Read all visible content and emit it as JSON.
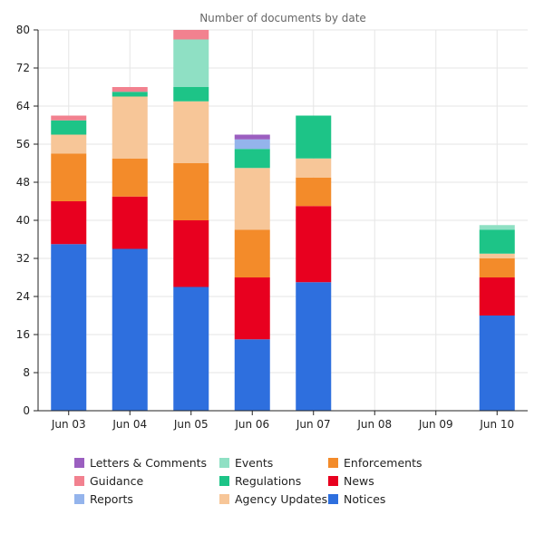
{
  "chart_data": {
    "type": "bar",
    "stacked": true,
    "title": "Number of documents by date",
    "xlabel": "",
    "ylabel": "",
    "ylim": [
      0,
      80
    ],
    "yticks": [
      0,
      8,
      16,
      24,
      32,
      40,
      48,
      56,
      64,
      72,
      80
    ],
    "grid": true,
    "legend_position": "bottom",
    "categories": [
      "Jun 03",
      "Jun 04",
      "Jun 05",
      "Jun 06",
      "Jun 07",
      "Jun 08",
      "Jun 09",
      "Jun 10"
    ],
    "series": [
      {
        "name": "Notices",
        "color": "#2e6fde",
        "values": [
          35,
          34,
          26,
          15,
          27,
          0,
          0,
          20
        ]
      },
      {
        "name": "News",
        "color": "#e8001f",
        "values": [
          9,
          11,
          14,
          13,
          16,
          0,
          0,
          8
        ]
      },
      {
        "name": "Enforcements",
        "color": "#f38b2a",
        "values": [
          10,
          8,
          12,
          10,
          6,
          0,
          0,
          4
        ]
      },
      {
        "name": "Agency Updates",
        "color": "#f7c698",
        "values": [
          4,
          13,
          13,
          13,
          4,
          0,
          0,
          1
        ]
      },
      {
        "name": "Regulations",
        "color": "#1dc487",
        "values": [
          3,
          1,
          3,
          4,
          9,
          0,
          0,
          5
        ]
      },
      {
        "name": "Events",
        "color": "#8fe0c4",
        "values": [
          0,
          0,
          10,
          0,
          0,
          0,
          0,
          1
        ]
      },
      {
        "name": "Reports",
        "color": "#94b4ec",
        "values": [
          0,
          0,
          0,
          2,
          0,
          0,
          0,
          0
        ]
      },
      {
        "name": "Guidance",
        "color": "#f2818f",
        "values": [
          1,
          1,
          2,
          0,
          0,
          0,
          0,
          0
        ]
      },
      {
        "name": "Letters & Comments",
        "color": "#9b5fc0",
        "values": [
          0,
          0,
          0,
          1,
          0,
          0,
          0,
          0
        ]
      }
    ],
    "legend_order": [
      "Letters & Comments",
      "Guidance",
      "Reports",
      "Events",
      "Regulations",
      "Agency Updates",
      "Enforcements",
      "News",
      "Notices"
    ]
  }
}
